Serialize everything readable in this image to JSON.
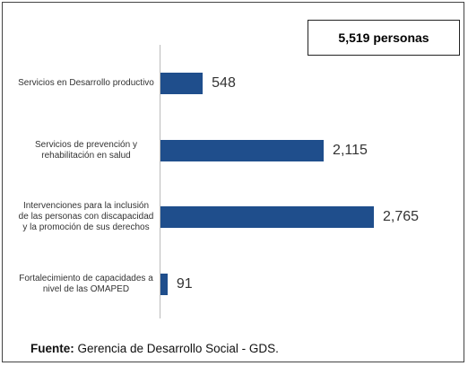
{
  "chart_data": {
    "type": "bar",
    "orientation": "horizontal",
    "annotation": "5,519 personas",
    "categories": [
      "Servicios en Desarrollo productivo",
      "Servicios de prevención y rehabilitación en salud",
      "Intervenciones para la inclusión de las personas con discapacidad y la promoción de sus derechos",
      "Fortalecimiento de capacidades a nivel de las OMAPED"
    ],
    "values": [
      548,
      2115,
      2765,
      91
    ],
    "value_labels": [
      "548",
      "2,115",
      "2,765",
      "91"
    ],
    "color": "#1f4e8c",
    "source_label": "Fuente:",
    "source": "Gerencia de Desarrollo Social - GDS."
  }
}
